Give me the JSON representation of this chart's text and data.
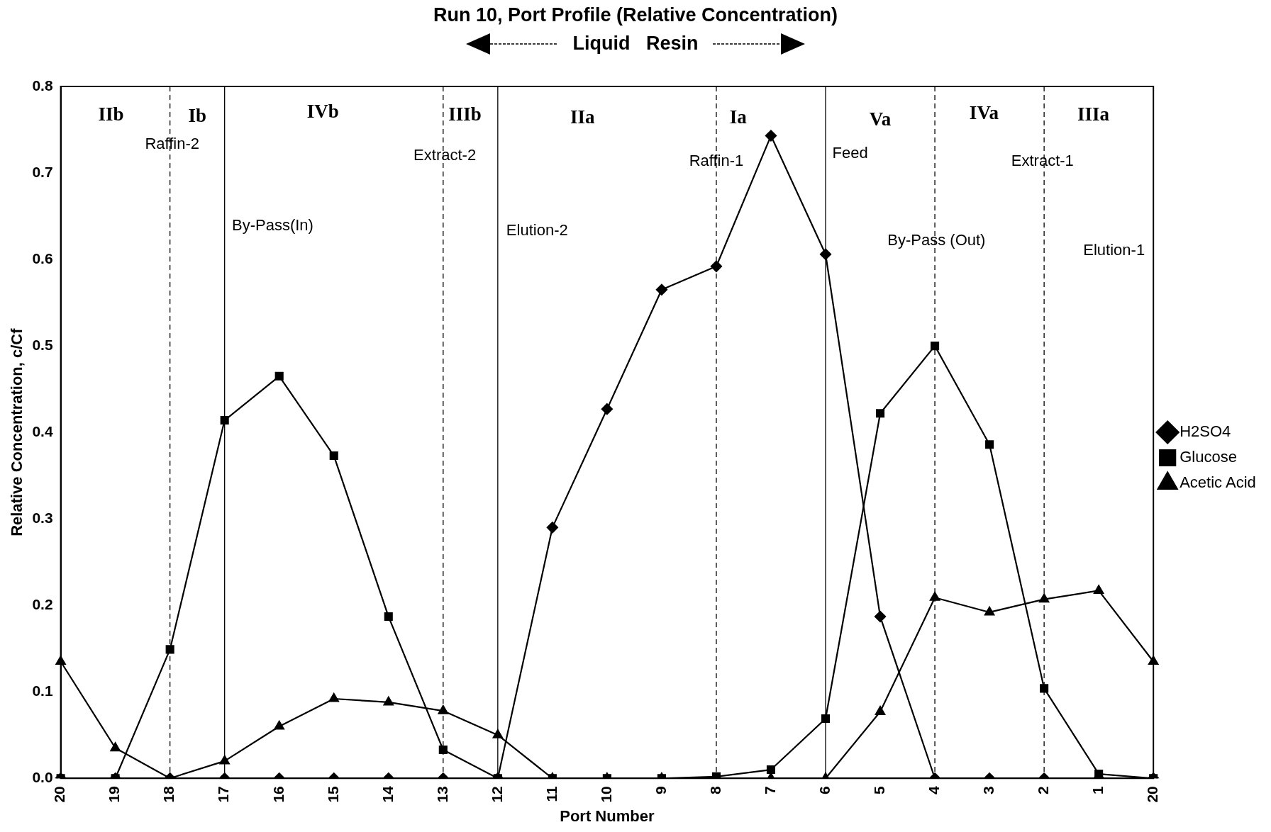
{
  "chart_data": {
    "type": "line",
    "title": "Run 10, Port Profile (Relative Concentration)",
    "subtitle": "Liquid   Resin",
    "xlabel": "Port Number",
    "ylabel": "Relative Concentration, c/Cf",
    "categories": [
      "20",
      "19",
      "18",
      "17",
      "16",
      "15",
      "14",
      "13",
      "12",
      "11",
      "10",
      "9",
      "8",
      "7",
      "6",
      "5",
      "4",
      "3",
      "2",
      "1",
      "20"
    ],
    "series": [
      {
        "name": "H2SO4",
        "color": "#000000",
        "marker": "diamond",
        "values": [
          0,
          0,
          0,
          0,
          0,
          0,
          0,
          0,
          0,
          0.29,
          0.427,
          0.565,
          0.592,
          0.743,
          0.606,
          0.187,
          0,
          0,
          0,
          0,
          0
        ]
      },
      {
        "name": "Glucose",
        "color": "#000000",
        "marker": "square",
        "values": [
          0,
          0,
          0.149,
          0.414,
          0.465,
          0.373,
          0.187,
          0.033,
          0,
          0,
          0,
          0,
          0.002,
          0.01,
          0.069,
          0.422,
          0.5,
          0.386,
          0.104,
          0.005,
          0
        ]
      },
      {
        "name": "Acetic Acid",
        "color": "#000000",
        "marker": "triangle",
        "values": [
          0.135,
          0.035,
          0,
          0.02,
          0.06,
          0.092,
          0.088,
          0.078,
          0.05,
          0,
          0,
          0,
          0,
          0,
          0,
          0.077,
          0.209,
          0.192,
          0.207,
          0.217,
          0.135
        ]
      }
    ],
    "ylim": [
      0,
      0.8
    ],
    "yticks": [
      {
        "value": 0,
        "label": "0.0"
      },
      {
        "value": 0.1,
        "label": "0.1"
      },
      {
        "value": 0.2,
        "label": "0.2"
      },
      {
        "value": 0.3,
        "label": "0.3"
      },
      {
        "value": 0.4,
        "label": "0.4"
      },
      {
        "value": 0.5,
        "label": "0.5"
      },
      {
        "value": 0.6,
        "label": "0.6"
      },
      {
        "value": 0.7,
        "label": "0.7"
      },
      {
        "value": 0.8,
        "label": "0.8"
      }
    ],
    "ref_lines": [
      {
        "axis": "x",
        "value": "18",
        "line_style": "dashed"
      },
      {
        "axis": "x",
        "value": "17",
        "line_style": "solid"
      },
      {
        "axis": "x",
        "value": "13",
        "line_style": "dashed"
      },
      {
        "axis": "x",
        "value": "12",
        "line_style": "solid"
      },
      {
        "axis": "x",
        "value": "8",
        "line_style": "dashed"
      },
      {
        "axis": "x",
        "value": "6",
        "line_style": "solid"
      },
      {
        "axis": "x",
        "value": "4",
        "line_style": "dashed"
      },
      {
        "axis": "x",
        "value": "2",
        "line_style": "dashed"
      }
    ],
    "annotations": [
      "IIb",
      "Ib",
      "IVb",
      "IIIb",
      "IIa",
      "Ia",
      "Va",
      "IVa",
      "IIIa",
      "Raffin-2",
      "By-Pass(In)",
      "Extract-2",
      "Elution-2",
      "Raffin-1",
      "Feed",
      "By-Pass (Out)",
      "Extract-1",
      "Elution-1"
    ],
    "grid": false,
    "legend": "right",
    "line_style": "solid"
  }
}
